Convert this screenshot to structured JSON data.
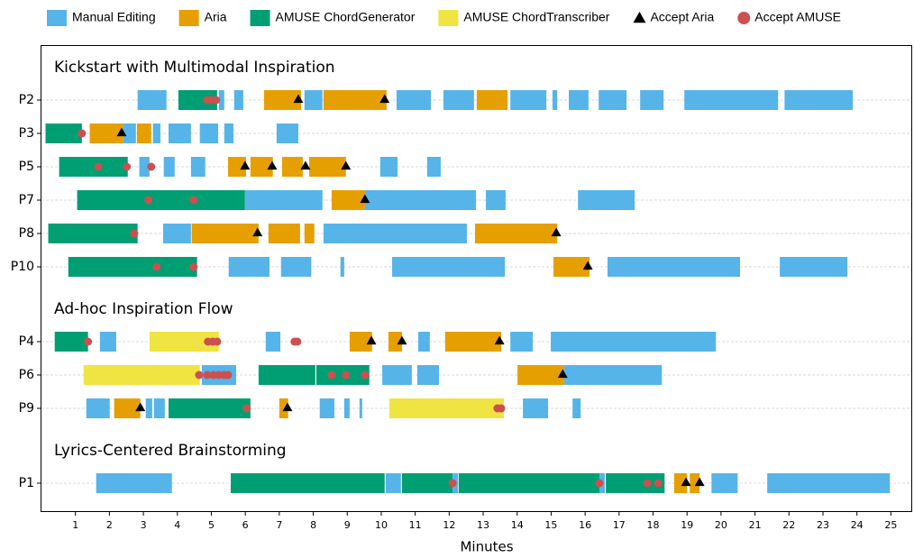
{
  "chart_data": {
    "type": "timeline",
    "xlabel": "Minutes",
    "xlim": [
      0,
      25.6
    ],
    "xticks": [
      1,
      2,
      3,
      4,
      5,
      6,
      7,
      8,
      9,
      10,
      11,
      12,
      13,
      14,
      15,
      16,
      17,
      18,
      19,
      20,
      21,
      22,
      23,
      24,
      25
    ],
    "grid": true,
    "series": [
      {
        "name": "Manual Editing",
        "color": "#56b4e9"
      },
      {
        "name": "Aria",
        "color": "#e69f00"
      },
      {
        "name": "AMUSE ChordGenerator",
        "color": "#009e73"
      },
      {
        "name": "AMUSE ChordTranscriber",
        "color": "#f0e442"
      }
    ],
    "markers": [
      {
        "name": "Accept Aria",
        "color": "#000000",
        "shape": "triangle"
      },
      {
        "name": "Accept AMUSE",
        "color": "#cc5050",
        "shape": "circle"
      }
    ],
    "groups": [
      {
        "title": "Kickstart with Multimodal Inspiration",
        "rows": [
          {
            "label": "P2",
            "segments": [
              {
                "activity": "Manual Editing",
                "start": 2.83,
                "end": 3.68
              },
              {
                "activity": "AMUSE ChordGenerator",
                "start": 4.03,
                "end": 5.17
              },
              {
                "activity": "Manual Editing",
                "start": 5.22,
                "end": 5.38
              },
              {
                "activity": "Manual Editing",
                "start": 5.67,
                "end": 5.94
              },
              {
                "activity": "Aria",
                "start": 6.55,
                "end": 7.64
              },
              {
                "activity": "Manual Editing",
                "start": 7.74,
                "end": 8.27
              },
              {
                "activity": "Aria",
                "start": 8.3,
                "end": 10.16
              },
              {
                "activity": "Manual Editing",
                "start": 10.45,
                "end": 11.46
              },
              {
                "activity": "Manual Editing",
                "start": 11.83,
                "end": 12.73
              },
              {
                "activity": "Aria",
                "start": 12.81,
                "end": 13.72
              },
              {
                "activity": "Manual Editing",
                "start": 13.8,
                "end": 14.86
              },
              {
                "activity": "Manual Editing",
                "start": 15.04,
                "end": 15.18
              },
              {
                "activity": "Manual Editing",
                "start": 15.52,
                "end": 16.1
              },
              {
                "activity": "Manual Editing",
                "start": 16.4,
                "end": 17.22
              },
              {
                "activity": "Manual Editing",
                "start": 17.62,
                "end": 18.31
              },
              {
                "activity": "Manual Editing",
                "start": 18.92,
                "end": 21.68
              },
              {
                "activity": "Manual Editing",
                "start": 21.87,
                "end": 23.88
              }
            ],
            "events": [
              [
                7.56,
                10.1
              ],
              [
                4.88,
                4.98,
                5.14
              ]
            ]
          },
          {
            "label": "P3",
            "segments": [
              {
                "activity": "AMUSE ChordGenerator",
                "start": 0.12,
                "end": 1.19
              },
              {
                "activity": "Aria",
                "start": 1.42,
                "end": 2.41
              },
              {
                "activity": "Manual Editing",
                "start": 2.41,
                "end": 2.78
              },
              {
                "activity": "Aria",
                "start": 2.81,
                "end": 3.23
              },
              {
                "activity": "Manual Editing",
                "start": 3.28,
                "end": 3.5
              },
              {
                "activity": "Manual Editing",
                "start": 3.74,
                "end": 4.4
              },
              {
                "activity": "Manual Editing",
                "start": 4.66,
                "end": 5.2
              },
              {
                "activity": "Manual Editing",
                "start": 5.38,
                "end": 5.65
              },
              {
                "activity": "Manual Editing",
                "start": 6.92,
                "end": 7.56
              }
            ],
            "events": [
              [
                2.36
              ],
              [
                1.19
              ]
            ]
          },
          {
            "label": "P5",
            "segments": [
              {
                "activity": "AMUSE ChordGenerator",
                "start": 0.52,
                "end": 2.54
              },
              {
                "activity": "Manual Editing",
                "start": 2.88,
                "end": 3.18
              },
              {
                "activity": "Manual Editing",
                "start": 3.6,
                "end": 3.92
              },
              {
                "activity": "Manual Editing",
                "start": 4.4,
                "end": 4.82
              },
              {
                "activity": "Aria",
                "start": 5.49,
                "end": 6.02
              },
              {
                "activity": "Aria",
                "start": 6.15,
                "end": 6.81
              },
              {
                "activity": "Aria",
                "start": 7.08,
                "end": 7.69
              },
              {
                "activity": "Aria",
                "start": 7.88,
                "end": 8.96
              },
              {
                "activity": "Manual Editing",
                "start": 9.97,
                "end": 10.48
              },
              {
                "activity": "Manual Editing",
                "start": 11.35,
                "end": 11.75
              }
            ],
            "events": [
              [
                5.99,
                6.79,
                7.77,
                8.96
              ],
              [
                1.67,
                2.51,
                3.23
              ]
            ]
          },
          {
            "label": "P7",
            "segments": [
              {
                "activity": "AMUSE ChordGenerator",
                "start": 1.05,
                "end": 5.99
              },
              {
                "activity": "Manual Editing",
                "start": 5.99,
                "end": 8.27
              },
              {
                "activity": "Aria",
                "start": 8.54,
                "end": 9.52
              },
              {
                "activity": "Manual Editing",
                "start": 9.52,
                "end": 12.79
              },
              {
                "activity": "Manual Editing",
                "start": 13.08,
                "end": 13.66
              },
              {
                "activity": "Manual Editing",
                "start": 15.79,
                "end": 17.46
              }
            ],
            "events": [
              [
                9.52
              ],
              [
                3.15,
                4.48
              ]
            ]
          },
          {
            "label": "P8",
            "segments": [
              {
                "activity": "AMUSE ChordGenerator",
                "start": 0.2,
                "end": 2.83
              },
              {
                "activity": "Manual Editing",
                "start": 3.58,
                "end": 4.4
              },
              {
                "activity": "Aria",
                "start": 4.42,
                "end": 6.39
              },
              {
                "activity": "Aria",
                "start": 6.68,
                "end": 7.61
              },
              {
                "activity": "Aria",
                "start": 7.74,
                "end": 8.03
              },
              {
                "activity": "Manual Editing",
                "start": 8.3,
                "end": 12.52
              },
              {
                "activity": "Aria",
                "start": 12.76,
                "end": 15.18
              }
            ],
            "events": [
              [
                6.36,
                15.15
              ],
              [
                2.73
              ]
            ]
          },
          {
            "label": "P10",
            "segments": [
              {
                "activity": "AMUSE ChordGenerator",
                "start": 0.79,
                "end": 4.58
              },
              {
                "activity": "Manual Editing",
                "start": 5.51,
                "end": 6.71
              },
              {
                "activity": "Manual Editing",
                "start": 7.05,
                "end": 7.94
              },
              {
                "activity": "Manual Editing",
                "start": 8.8,
                "end": 8.91
              },
              {
                "activity": "Manual Editing",
                "start": 10.32,
                "end": 13.64
              },
              {
                "activity": "Aria",
                "start": 15.07,
                "end": 16.13
              },
              {
                "activity": "Manual Editing",
                "start": 16.66,
                "end": 20.56
              },
              {
                "activity": "Manual Editing",
                "start": 21.73,
                "end": 23.72
              }
            ],
            "events": [
              [
                16.08
              ],
              [
                3.39,
                4.48
              ]
            ]
          }
        ]
      },
      {
        "title": "Ad-hoc Inspiration Flow",
        "rows": [
          {
            "label": "P4",
            "segments": [
              {
                "activity": "AMUSE ChordGenerator",
                "start": 0.39,
                "end": 1.37
              },
              {
                "activity": "Manual Editing",
                "start": 1.72,
                "end": 2.2
              },
              {
                "activity": "AMUSE ChordTranscriber",
                "start": 3.18,
                "end": 5.22
              },
              {
                "activity": "Manual Editing",
                "start": 6.6,
                "end": 7.03
              },
              {
                "activity": "Aria",
                "start": 9.07,
                "end": 9.73
              },
              {
                "activity": "Aria",
                "start": 10.21,
                "end": 10.61
              },
              {
                "activity": "Manual Editing",
                "start": 11.09,
                "end": 11.43
              },
              {
                "activity": "Aria",
                "start": 11.88,
                "end": 13.53
              },
              {
                "activity": "Manual Editing",
                "start": 13.8,
                "end": 14.46
              },
              {
                "activity": "Manual Editing",
                "start": 14.99,
                "end": 19.85
              }
            ],
            "events": [
              [
                9.71,
                10.61,
                13.48
              ],
              [
                1.37,
                4.9,
                5.04,
                5.17,
                7.45,
                7.53
              ]
            ]
          },
          {
            "label": "P6",
            "segments": [
              {
                "activity": "AMUSE ChordTranscriber",
                "start": 1.24,
                "end": 4.66
              },
              {
                "activity": "Manual Editing",
                "start": 4.72,
                "end": 5.73
              },
              {
                "activity": "AMUSE ChordGenerator",
                "start": 6.39,
                "end": 8.06
              },
              {
                "activity": "AMUSE ChordGenerator",
                "start": 8.09,
                "end": 9.65
              },
              {
                "activity": "Manual Editing",
                "start": 10.03,
                "end": 10.9
              },
              {
                "activity": "Manual Editing",
                "start": 11.06,
                "end": 11.7
              },
              {
                "activity": "Aria",
                "start": 14.01,
                "end": 15.39
              },
              {
                "activity": "Manual Editing",
                "start": 15.39,
                "end": 18.26
              }
            ],
            "events": [
              [
                15.34
              ],
              [
                4.64,
                4.88,
                5.06,
                5.22,
                5.38,
                5.49,
                8.54,
                8.96,
                9.52
              ]
            ]
          },
          {
            "label": "P9",
            "segments": [
              {
                "activity": "Manual Editing",
                "start": 1.32,
                "end": 2.01
              },
              {
                "activity": "Aria",
                "start": 2.14,
                "end": 2.91
              },
              {
                "activity": "Manual Editing",
                "start": 3.07,
                "end": 3.26
              },
              {
                "activity": "Manual Editing",
                "start": 3.31,
                "end": 3.63
              },
              {
                "activity": "AMUSE ChordGenerator",
                "start": 3.74,
                "end": 6.15
              },
              {
                "activity": "Aria",
                "start": 7.0,
                "end": 7.26
              },
              {
                "activity": "Manual Editing",
                "start": 8.19,
                "end": 8.62
              },
              {
                "activity": "Manual Editing",
                "start": 8.91,
                "end": 9.07
              },
              {
                "activity": "Manual Editing",
                "start": 9.36,
                "end": 9.44
              },
              {
                "activity": "AMUSE ChordTranscriber",
                "start": 10.24,
                "end": 13.61
              },
              {
                "activity": "Manual Editing",
                "start": 14.17,
                "end": 14.91
              },
              {
                "activity": "Manual Editing",
                "start": 15.63,
                "end": 15.87
              }
            ],
            "events": [
              [
                2.91,
                7.24
              ],
              [
                6.04,
                13.42,
                13.53
              ]
            ]
          }
        ]
      },
      {
        "title": "Lyrics-Centered Brainstorming",
        "rows": [
          {
            "label": "P1",
            "segments": [
              {
                "activity": "Manual Editing",
                "start": 1.61,
                "end": 3.84
              },
              {
                "activity": "AMUSE ChordGenerator",
                "start": 5.57,
                "end": 10.1
              },
              {
                "activity": "Manual Editing",
                "start": 10.13,
                "end": 10.58
              },
              {
                "activity": "AMUSE ChordGenerator",
                "start": 10.61,
                "end": 12.1
              },
              {
                "activity": "Manual Editing",
                "start": 12.1,
                "end": 12.26
              },
              {
                "activity": "AMUSE ChordGenerator",
                "start": 12.28,
                "end": 16.42
              },
              {
                "activity": "Manual Editing",
                "start": 16.42,
                "end": 16.58
              },
              {
                "activity": "AMUSE ChordGenerator",
                "start": 16.61,
                "end": 18.34
              },
              {
                "activity": "Aria",
                "start": 18.62,
                "end": 19.0
              },
              {
                "activity": "Aria",
                "start": 19.08,
                "end": 19.37
              },
              {
                "activity": "Manual Editing",
                "start": 19.72,
                "end": 20.49
              },
              {
                "activity": "Manual Editing",
                "start": 21.36,
                "end": 24.97
              }
            ],
            "events": [
              [
                18.97,
                19.37
              ],
              [
                12.1,
                16.42,
                17.83,
                18.15
              ]
            ]
          }
        ]
      }
    ]
  }
}
